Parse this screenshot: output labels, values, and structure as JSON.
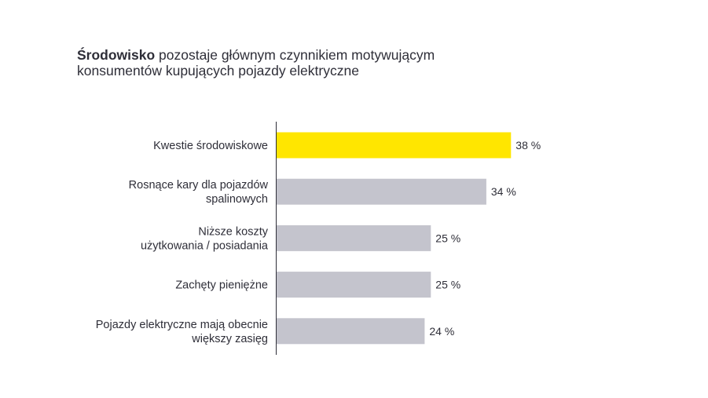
{
  "chart_data": {
    "type": "bar",
    "orientation": "horizontal",
    "title_bold": "Środowisko",
    "title_rest": " pozostaje głównym czynnikiem motywującym",
    "title_line2": "konsumentów kupujących pojazdy elektryczne",
    "categories": [
      [
        "Kwestie środowiskowe"
      ],
      [
        "Rosnące kary dla pojazdów",
        "spalinowych"
      ],
      [
        "Niższe koszty",
        "użytkowania / posiadania"
      ],
      [
        "Zachęty pieniężne"
      ],
      [
        "Pojazdy elektryczne mają obecnie",
        "większy zasięg"
      ]
    ],
    "values": [
      38,
      34,
      25,
      25,
      24
    ],
    "value_labels": [
      "38 %",
      "34 %",
      "25 %",
      "25 %",
      "24 %"
    ],
    "highlight_index": 0,
    "xlim": [
      0,
      100
    ],
    "grid": false,
    "legend": "none",
    "colors": {
      "highlight": "#ffe600",
      "default": "#c4c4cd",
      "text": "#2e2e38",
      "axis": "#2e2e38"
    }
  }
}
